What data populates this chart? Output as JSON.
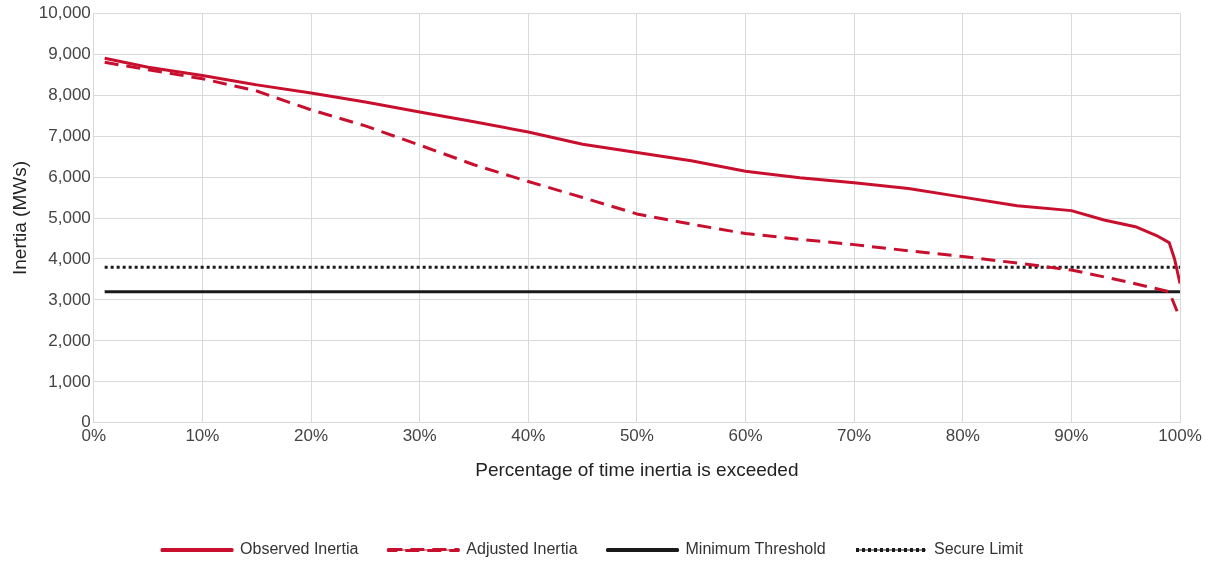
{
  "chart_data": {
    "type": "line",
    "xlabel": "Percentage of time inertia is exceeded",
    "ylabel": "Inertia (MWs)",
    "xlim": [
      0,
      100
    ],
    "xticks": [
      {
        "value": 0,
        "label": "0%"
      },
      {
        "value": 10,
        "label": "10%"
      },
      {
        "value": 20,
        "label": "20%"
      },
      {
        "value": 30,
        "label": "30%"
      },
      {
        "value": 40,
        "label": "40%"
      },
      {
        "value": 50,
        "label": "50%"
      },
      {
        "value": 60,
        "label": "60%"
      },
      {
        "value": 70,
        "label": "70%"
      },
      {
        "value": 80,
        "label": "80%"
      },
      {
        "value": 90,
        "label": "90%"
      },
      {
        "value": 100,
        "label": "100%"
      }
    ],
    "ylim": [
      0,
      10000
    ],
    "yticks": [
      0,
      {
        "value": 1000,
        "label": "1,000"
      },
      {
        "value": 2000,
        "label": "2,000"
      },
      {
        "value": 3000,
        "label": "3,000"
      },
      {
        "value": 4000,
        "label": "4,000"
      },
      {
        "value": 5000,
        "label": "5,000"
      },
      {
        "value": 6000,
        "label": "6,000"
      },
      {
        "value": 7000,
        "label": "7,000"
      },
      {
        "value": 8000,
        "label": "8,000"
      },
      {
        "value": 9000,
        "label": "9,000"
      },
      {
        "value": 10000,
        "label": "10,000"
      }
    ],
    "grid": true,
    "legend": "bottom",
    "marker": "none",
    "series": [
      {
        "name": "Observed Inertia",
        "color": "#c8102e",
        "line_style": "solid",
        "x": [
          1,
          5,
          10,
          15,
          20,
          25,
          30,
          35,
          40,
          45,
          50,
          55,
          60,
          65,
          70,
          75,
          80,
          85,
          90,
          93,
          96,
          98,
          99,
          99.5,
          100
        ],
        "values": [
          8900,
          8680,
          8480,
          8250,
          8050,
          7830,
          7590,
          7350,
          7100,
          6800,
          6600,
          6400,
          6140,
          5980,
          5860,
          5720,
          5510,
          5300,
          5180,
          4950,
          4780,
          4550,
          4400,
          4000,
          3400
        ]
      },
      {
        "name": "Adjusted Inertia",
        "color": "#c8102e",
        "line_style": "dashed",
        "x": [
          1,
          5,
          10,
          15,
          20,
          25,
          30,
          35,
          40,
          45,
          50,
          55,
          60,
          65,
          70,
          75,
          80,
          85,
          90,
          95,
          99,
          100
        ],
        "values": [
          8800,
          8620,
          8400,
          8100,
          7640,
          7250,
          6780,
          6300,
          5890,
          5500,
          5100,
          4850,
          4620,
          4480,
          4350,
          4200,
          4060,
          3900,
          3730,
          3450,
          3200,
          2550
        ]
      },
      {
        "name": "Minimum Threshold",
        "color": "#1a1a1a",
        "line_style": "solid",
        "x": [
          1,
          100
        ],
        "values": [
          3200,
          3200
        ]
      },
      {
        "name": "Secure Limit",
        "color": "#1a1a1a",
        "line_style": "dotted",
        "x": [
          1,
          100
        ],
        "values": [
          3800,
          3800
        ]
      }
    ]
  }
}
